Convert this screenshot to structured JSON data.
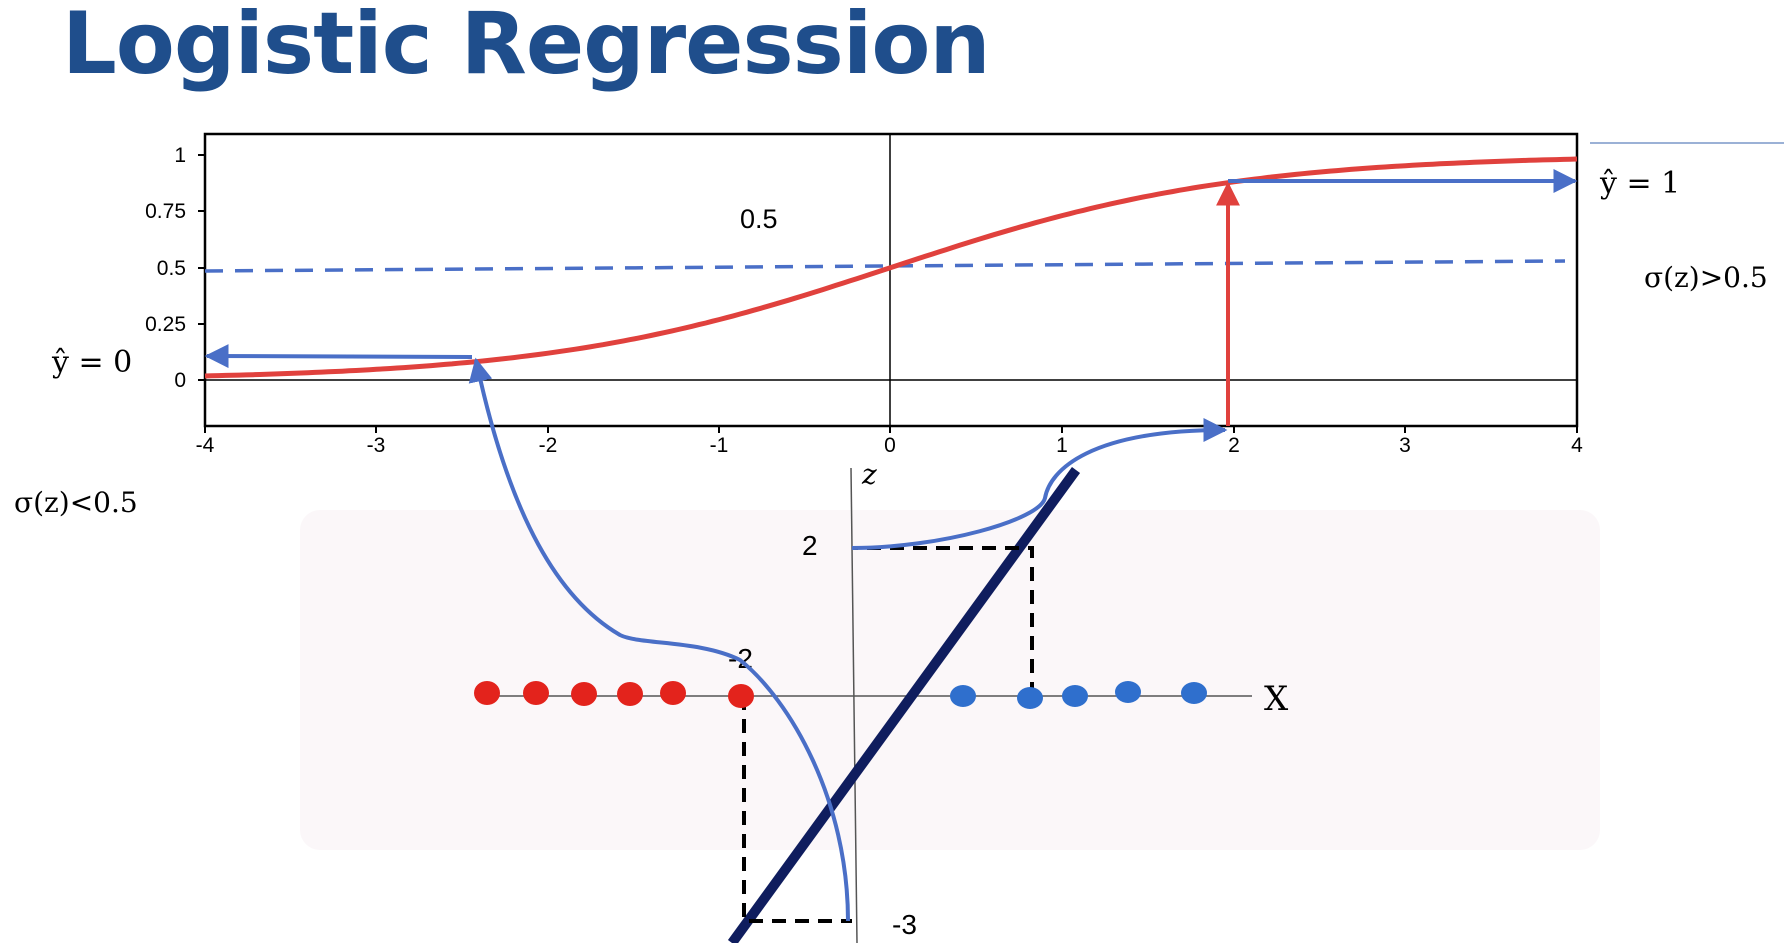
{
  "slide": {
    "title": "Logistic Regression"
  },
  "colors": {
    "title": "#1f4e8c",
    "sigmoid": "#e0413d",
    "blue_arrow": "#4a6fc7",
    "line": "#0f1d5e",
    "red_point": "#e3231c",
    "blue_point": "#2f6fcd"
  },
  "sigmoid_plot": {
    "x_ticks": [
      "-4",
      "-3",
      "-2",
      "-1",
      "0",
      "1",
      "2",
      "3",
      "4"
    ],
    "y_ticks": [
      "1",
      "0.75",
      "0.5",
      "0.25",
      "0"
    ],
    "threshold_label": "0.5",
    "yhat_one_label": "ŷ = 1",
    "yhat_zero_label": "ŷ = 0",
    "sigma_gt_label": "σ(z)>0.5",
    "sigma_lt_label": "σ(z)<0.5"
  },
  "projection": {
    "z_axis_label": "z",
    "x_axis_label": "X",
    "z_value_high": "2",
    "z_value_low": "-3",
    "z_value_mid": "-2",
    "red_points_count": 6,
    "blue_points_count": 5
  }
}
